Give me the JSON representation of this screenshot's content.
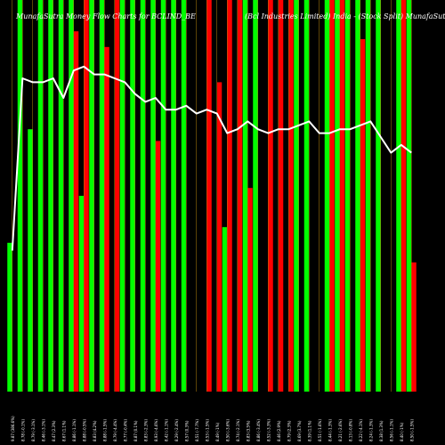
{
  "chart_data": {
    "type": "bar",
    "title_left": "MunafaSutra Money Flow Charts for BCLIND_BE",
    "title_right": "(Bcl Industries Limited)  India - (Stock Split) MunafaSutra.com",
    "ylim": [
      0,
      100
    ],
    "colors": {
      "up": "#00ff00",
      "down": "#ff0000",
      "line": "#ffffff",
      "grid": "#b8860b",
      "background": "#000000"
    },
    "categories": [
      "9.87 (386.6%)",
      "8.78 (-0.1%)",
      "8.79 (-3.1%)",
      "8.46 (-3.1%)",
      "8.47 (2.3%)",
      "8.67 (1.1%)",
      "8.86 (-1.1%)",
      "8.88 (-0.5%)",
      "8.83 (4.2%)",
      "8.88 (-1.5%)",
      "8.79 (-4.4%)",
      "8.77 (-0.4%)",
      "8.87 (0.1%)",
      "8.83 (-2.3%)",
      "8.93 (-4.6%)",
      "8.42 (-1.1%)",
      "8.29 (-2.4%)",
      "8.57 (0.3%)",
      "8.51 (-7.7%)",
      "8.53 (-1.5%)",
      "8.49 (-1%)",
      "8.50 (-3.6%)",
      "8.74 (-2.1%)",
      "8.83 (3.5%)",
      "8.86 (-3.4%)",
      "8.52 (-3.3%)",
      "8.46 (2.9%)",
      "8.79 (2.3%)",
      "8.69 (3.7%)",
      "8.39 (1.1%)",
      "8.51 (-1.6%)",
      "8.44 (-1.3%)",
      "8.21 (-2.6%)",
      "8.13 (-0.8%)",
      "8.22 (-4.1%)",
      "8.24 (-1.3%)",
      "8.38 (1.3%)",
      "8.56 (-1.1%)",
      "8.40 (-1%)",
      "8.50 (-1.5%)"
    ],
    "series": [
      {
        "values": [
          38,
          100,
          67,
          100,
          100,
          100,
          100,
          50,
          100,
          100,
          0,
          100,
          100,
          100,
          100,
          100,
          100,
          100,
          0,
          0,
          0,
          42,
          0,
          100,
          100,
          0,
          0,
          0,
          100,
          100,
          0,
          100,
          100,
          100,
          100,
          100,
          100,
          0,
          100,
          100
        ]
      },
      {
        "values": [
          0,
          0,
          0,
          0,
          0,
          0,
          92,
          100,
          0,
          88,
          100,
          0,
          0,
          0,
          64,
          0,
          0,
          0,
          0,
          100,
          79,
          100,
          100,
          52,
          0,
          100,
          100,
          100,
          0,
          0,
          0,
          100,
          100,
          0,
          90,
          0,
          0,
          0,
          100,
          33
        ]
      },
      {
        "values": [
          36,
          80,
          79,
          79,
          80,
          75,
          82,
          83,
          81,
          81,
          80,
          79,
          76,
          74,
          75,
          72,
          72,
          73,
          71,
          72,
          71,
          66,
          67,
          69,
          67,
          66,
          67,
          67,
          68,
          69,
          66,
          66,
          67,
          67,
          68,
          69,
          65,
          61,
          63,
          61
        ]
      }
    ]
  }
}
